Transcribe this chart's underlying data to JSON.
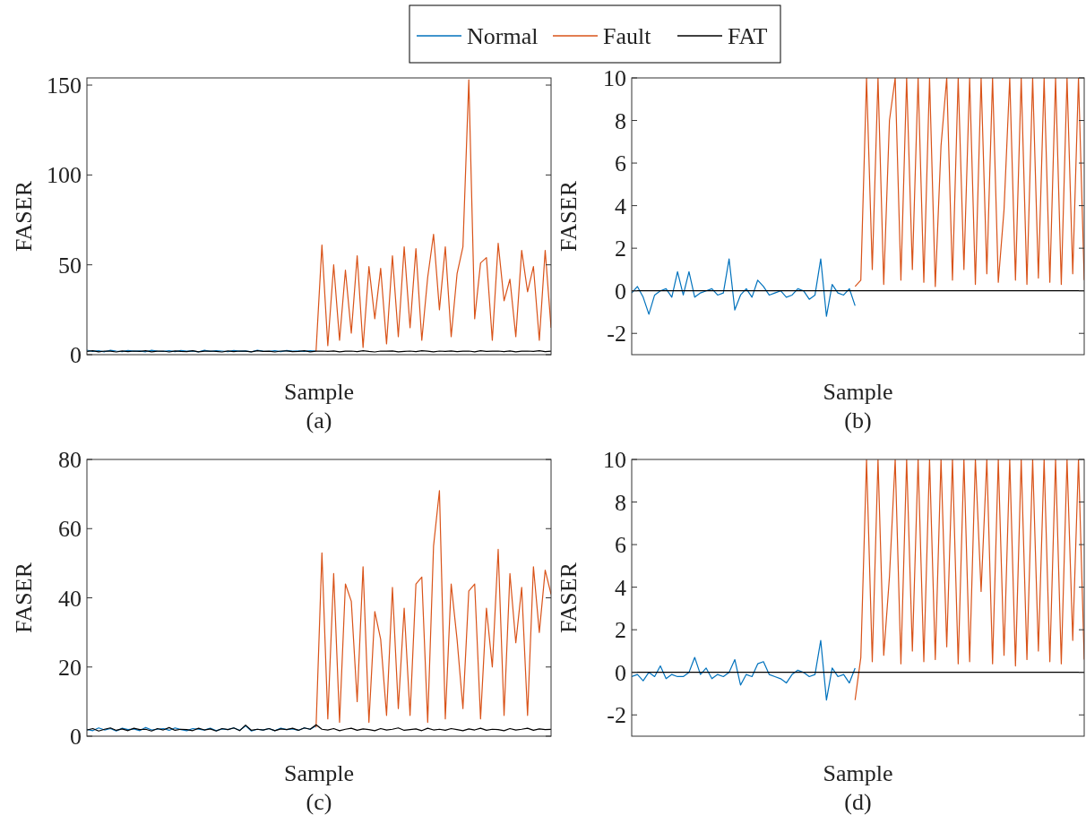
{
  "chart_data": [
    {
      "type": "line",
      "xlabel": "Sample",
      "ylabel": "FASER",
      "annotations": [
        "(a)"
      ],
      "legend": "top",
      "tick_labels": "y",
      "grid": false,
      "ylim": [
        0,
        154
      ],
      "yticks": [
        0,
        50,
        100,
        150
      ],
      "categories": [
        null,
        null,
        null,
        null,
        null,
        null,
        null,
        null,
        null,
        null,
        null,
        null,
        null,
        null,
        null,
        null,
        null,
        null,
        null,
        null,
        null,
        null,
        null,
        null,
        null,
        null,
        null,
        null,
        null,
        null,
        null,
        null,
        null,
        null,
        null,
        null,
        null,
        null,
        null,
        null,
        null,
        null,
        null,
        null,
        null,
        null,
        null,
        null,
        null,
        null,
        null,
        null,
        null,
        null,
        null,
        null,
        null,
        null,
        null,
        null,
        null,
        null,
        null,
        null,
        null,
        null,
        null,
        null,
        null,
        null,
        null,
        null,
        null,
        null,
        null,
        null,
        null,
        null,
        null,
        null
      ],
      "series": [
        {
          "name": "Normal",
          "color": "#0072bd",
          "values": [
            2.5,
            1.8,
            2.2,
            1.6,
            2.4,
            2,
            1.7,
            2.3,
            1.9,
            2.1,
            1.6,
            2.4,
            2,
            1.8,
            2.2,
            1.7,
            2.3,
            1.9,
            2.1,
            1.6,
            2.4,
            1.8,
            2.2,
            2,
            1.7,
            2.3,
            1.9,
            2.1,
            1.6,
            2.4,
            2,
            1.8,
            2.2,
            1.7,
            2.3,
            1.9,
            2.1,
            1.8,
            2.2,
            2,
            null,
            null,
            null,
            null,
            null,
            null,
            null,
            null,
            null,
            null,
            null,
            null,
            null,
            null,
            null,
            null,
            null,
            null,
            null,
            null,
            null,
            null,
            null,
            null,
            null,
            null,
            null,
            null,
            null,
            null,
            null,
            null,
            null,
            null,
            null,
            null,
            null,
            null,
            null,
            null
          ]
        },
        {
          "name": "Fault",
          "color": "#d95319",
          "values": [
            null,
            null,
            null,
            null,
            null,
            null,
            null,
            null,
            null,
            null,
            null,
            null,
            null,
            null,
            null,
            null,
            null,
            null,
            null,
            null,
            null,
            null,
            null,
            null,
            null,
            null,
            null,
            null,
            null,
            null,
            null,
            null,
            null,
            null,
            null,
            null,
            null,
            null,
            null,
            2,
            61,
            5,
            50,
            8,
            47,
            12,
            55,
            4,
            49,
            20,
            48,
            6,
            55,
            10,
            60,
            15,
            59,
            8,
            43,
            67,
            25,
            60,
            10,
            45,
            60,
            153,
            20,
            51,
            54,
            8,
            62,
            30,
            42,
            10,
            58,
            35,
            49,
            8,
            58,
            15
          ]
        },
        {
          "name": "FAT",
          "color": "#000000",
          "values": [
            1.8,
            2.2,
            1.6,
            2,
            1.9,
            1.5,
            2.1,
            1.7,
            2,
            1.8,
            2.2,
            1.6,
            1.9,
            2,
            1.5,
            2.1,
            1.8,
            1.7,
            2.2,
            1.6,
            1.9,
            2,
            1.8,
            1.5,
            2.1,
            1.7,
            2,
            1.9,
            1.6,
            2.2,
            1.8,
            1.9,
            1.5,
            2,
            2.1,
            1.7,
            1.8,
            2.2,
            1.6,
            1.9,
            2,
            1.8,
            2.1,
            1.6,
            1.9,
            2,
            1.7,
            2.2,
            1.8,
            1.5,
            2,
            1.9,
            2.1,
            1.6,
            1.8,
            2,
            1.7,
            2.2,
            1.9,
            1.6,
            2,
            1.8,
            2.1,
            1.7,
            1.9,
            2,
            1.6,
            2.2,
            1.8,
            1.9,
            2,
            1.7,
            2.1,
            1.6,
            1.9,
            2,
            1.8,
            2.2,
            1.7,
            1.9
          ]
        }
      ]
    },
    {
      "type": "line",
      "xlabel": "Sample",
      "ylabel": "FASER",
      "annotations": [
        "(b)"
      ],
      "tick_labels": "y",
      "grid": false,
      "ylim": [
        -3,
        10
      ],
      "yticks": [
        -2,
        0,
        2,
        4,
        6,
        8,
        10
      ],
      "categories": [
        null,
        null,
        null,
        null,
        null,
        null,
        null,
        null,
        null,
        null,
        null,
        null,
        null,
        null,
        null,
        null,
        null,
        null,
        null,
        null,
        null,
        null,
        null,
        null,
        null,
        null,
        null,
        null,
        null,
        null,
        null,
        null,
        null,
        null,
        null,
        null,
        null,
        null,
        null,
        null,
        null,
        null,
        null,
        null,
        null,
        null,
        null,
        null,
        null,
        null,
        null,
        null,
        null,
        null,
        null,
        null,
        null,
        null,
        null,
        null,
        null,
        null,
        null,
        null,
        null,
        null,
        null,
        null,
        null,
        null,
        null,
        null,
        null,
        null,
        null,
        null,
        null,
        null,
        null,
        null
      ],
      "series": [
        {
          "color": "#0072bd",
          "values": [
            -0.1,
            0.2,
            -0.3,
            -1.1,
            -0.2,
            0,
            0.1,
            -0.3,
            0.9,
            -0.2,
            0.9,
            -0.3,
            -0.1,
            0,
            0.1,
            -0.2,
            -0.1,
            1.5,
            -0.9,
            -0.2,
            0.1,
            -0.3,
            0.5,
            0.2,
            -0.2,
            -0.1,
            0,
            -0.3,
            -0.2,
            0.1,
            0,
            -0.4,
            -0.2,
            1.5,
            -1.2,
            0.3,
            -0.1,
            -0.2,
            0.1,
            -0.7,
            null,
            null,
            null,
            null,
            null,
            null,
            null,
            null,
            null,
            null,
            null,
            null,
            null,
            null,
            null,
            null,
            null,
            null,
            null,
            null,
            null,
            null,
            null,
            null,
            null,
            null,
            null,
            null,
            null,
            null,
            null,
            null,
            null,
            null,
            null,
            null,
            null,
            null,
            null,
            null
          ]
        },
        {
          "color": "#d95319",
          "values": [
            null,
            null,
            null,
            null,
            null,
            null,
            null,
            null,
            null,
            null,
            null,
            null,
            null,
            null,
            null,
            null,
            null,
            null,
            null,
            null,
            null,
            null,
            null,
            null,
            null,
            null,
            null,
            null,
            null,
            null,
            null,
            null,
            null,
            null,
            null,
            null,
            null,
            null,
            null,
            0.2,
            0.5,
            10,
            1,
            10,
            0.3,
            8,
            10,
            0.5,
            10,
            1,
            10,
            0.4,
            10,
            0.2,
            6.8,
            10,
            0.5,
            10,
            1,
            10,
            0.3,
            10,
            0.8,
            10,
            0.4,
            3.8,
            10,
            0.5,
            10,
            0.3,
            10,
            0.6,
            10,
            0.4,
            10,
            0.3,
            10,
            0.8,
            10,
            0.5
          ]
        },
        {
          "color": "#000000",
          "values": [
            0,
            0,
            0,
            0,
            0,
            0,
            0,
            0,
            0,
            0,
            0,
            0,
            0,
            0,
            0,
            0,
            0,
            0,
            0,
            0,
            0,
            0,
            0,
            0,
            0,
            0,
            0,
            0,
            0,
            0,
            0,
            0,
            0,
            0,
            0,
            0,
            0,
            0,
            0,
            0,
            0,
            0,
            0,
            0,
            0,
            0,
            0,
            0,
            0,
            0,
            0,
            0,
            0,
            0,
            0,
            0,
            0,
            0,
            0,
            0,
            0,
            0,
            0,
            0,
            0,
            0,
            0,
            0,
            0,
            0,
            0,
            0,
            0,
            0,
            0,
            0,
            0,
            0,
            0,
            0
          ]
        }
      ]
    },
    {
      "type": "line",
      "xlabel": "Sample",
      "ylabel": "FASER",
      "annotations": [
        "(c)"
      ],
      "tick_labels": "y",
      "grid": false,
      "ylim": [
        0,
        80
      ],
      "yticks": [
        0,
        20,
        40,
        60,
        80
      ],
      "categories": [
        null,
        null,
        null,
        null,
        null,
        null,
        null,
        null,
        null,
        null,
        null,
        null,
        null,
        null,
        null,
        null,
        null,
        null,
        null,
        null,
        null,
        null,
        null,
        null,
        null,
        null,
        null,
        null,
        null,
        null,
        null,
        null,
        null,
        null,
        null,
        null,
        null,
        null,
        null,
        null,
        null,
        null,
        null,
        null,
        null,
        null,
        null,
        null,
        null,
        null,
        null,
        null,
        null,
        null,
        null,
        null,
        null,
        null,
        null,
        null,
        null,
        null,
        null,
        null,
        null,
        null,
        null,
        null,
        null,
        null,
        null,
        null,
        null,
        null,
        null,
        null,
        null,
        null,
        null,
        null
      ],
      "series": [
        {
          "color": "#0072bd",
          "values": [
            2,
            1.6,
            2.4,
            1.8,
            2.2,
            1.5,
            2.3,
            1.9,
            2.1,
            1.6,
            2.5,
            1.8,
            2,
            2.2,
            1.7,
            2.4,
            1.9,
            1.6,
            2.2,
            2,
            1.8,
            2.3,
            1.6,
            2.1,
            1.9,
            2.4,
            1.7,
            3,
            1.5,
            2,
            1.8,
            2.2,
            1.6,
            2.3,
            1.9,
            2.1,
            1.7,
            2.4,
            2,
            3,
            null,
            null,
            null,
            null,
            null,
            null,
            null,
            null,
            null,
            null,
            null,
            null,
            null,
            null,
            null,
            null,
            null,
            null,
            null,
            null,
            null,
            null,
            null,
            null,
            null,
            null,
            null,
            null,
            null,
            null,
            null,
            null,
            null,
            null,
            null,
            null,
            null,
            null,
            null,
            null
          ]
        },
        {
          "color": "#d95319",
          "values": [
            null,
            null,
            null,
            null,
            null,
            null,
            null,
            null,
            null,
            null,
            null,
            null,
            null,
            null,
            null,
            null,
            null,
            null,
            null,
            null,
            null,
            null,
            null,
            null,
            null,
            null,
            null,
            null,
            null,
            null,
            null,
            null,
            null,
            null,
            null,
            null,
            null,
            null,
            null,
            2.5,
            53,
            5,
            47,
            4,
            44,
            39,
            10,
            49,
            4,
            36,
            28,
            6,
            43,
            8,
            37,
            6,
            44,
            46,
            4,
            55,
            71,
            5,
            44,
            28,
            8,
            42,
            44,
            5,
            37,
            20,
            54,
            6,
            47,
            27,
            43,
            6,
            49,
            30,
            48,
            41
          ]
        },
        {
          "color": "#000000",
          "values": [
            1.8,
            2.2,
            1.5,
            2,
            2.4,
            1.7,
            2.1,
            1.6,
            2.3,
            1.9,
            2,
            1.5,
            2.2,
            1.8,
            2.5,
            1.7,
            2,
            1.9,
            1.6,
            2.3,
            1.8,
            2.1,
            1.5,
            2.2,
            1.9,
            2.4,
            1.6,
            3.2,
            1.7,
            2,
            1.8,
            2.2,
            1.6,
            2.1,
            1.9,
            2.3,
            1.7,
            2.4,
            2,
            3.3,
            2,
            1.8,
            2.2,
            1.6,
            2,
            2.3,
            1.7,
            2.1,
            1.9,
            1.6,
            2.2,
            1.8,
            2,
            2.4,
            1.7,
            1.9,
            2.1,
            1.6,
            2.3,
            1.8,
            2,
            1.7,
            2.2,
            1.9,
            1.6,
            2.1,
            1.8,
            2.3,
            1.7,
            2,
            1.9,
            1.6,
            2.2,
            1.8,
            2,
            2.3,
            1.7,
            2.1,
            1.9,
            2
          ]
        }
      ]
    },
    {
      "type": "line",
      "xlabel": "Sample",
      "ylabel": "FASER",
      "annotations": [
        "(d)"
      ],
      "tick_labels": "y",
      "grid": false,
      "ylim": [
        -3,
        10
      ],
      "yticks": [
        -2,
        0,
        2,
        4,
        6,
        8,
        10
      ],
      "categories": [
        null,
        null,
        null,
        null,
        null,
        null,
        null,
        null,
        null,
        null,
        null,
        null,
        null,
        null,
        null,
        null,
        null,
        null,
        null,
        null,
        null,
        null,
        null,
        null,
        null,
        null,
        null,
        null,
        null,
        null,
        null,
        null,
        null,
        null,
        null,
        null,
        null,
        null,
        null,
        null,
        null,
        null,
        null,
        null,
        null,
        null,
        null,
        null,
        null,
        null,
        null,
        null,
        null,
        null,
        null,
        null,
        null,
        null,
        null,
        null,
        null,
        null,
        null,
        null,
        null,
        null,
        null,
        null,
        null,
        null,
        null,
        null,
        null,
        null,
        null,
        null,
        null,
        null,
        null,
        null
      ],
      "series": [
        {
          "color": "#0072bd",
          "values": [
            -0.2,
            -0.1,
            -0.4,
            0,
            -0.2,
            0.3,
            -0.3,
            -0.1,
            -0.2,
            -0.2,
            0,
            0.7,
            -0.1,
            0.2,
            -0.3,
            -0.1,
            -0.2,
            0,
            0.6,
            -0.6,
            -0.1,
            -0.2,
            0.4,
            0.5,
            -0.1,
            -0.2,
            -0.3,
            -0.5,
            -0.1,
            0.1,
            0,
            -0.2,
            -0.1,
            1.5,
            -1.3,
            0.2,
            -0.2,
            -0.1,
            -0.5,
            0.2,
            null,
            null,
            null,
            null,
            null,
            null,
            null,
            null,
            null,
            null,
            null,
            null,
            null,
            null,
            null,
            null,
            null,
            null,
            null,
            null,
            null,
            null,
            null,
            null,
            null,
            null,
            null,
            null,
            null,
            null,
            null,
            null,
            null,
            null,
            null,
            null,
            null,
            null,
            null,
            null
          ]
        },
        {
          "color": "#d95319",
          "values": [
            null,
            null,
            null,
            null,
            null,
            null,
            null,
            null,
            null,
            null,
            null,
            null,
            null,
            null,
            null,
            null,
            null,
            null,
            null,
            null,
            null,
            null,
            null,
            null,
            null,
            null,
            null,
            null,
            null,
            null,
            null,
            null,
            null,
            null,
            null,
            null,
            null,
            null,
            null,
            -1.3,
            0.7,
            10,
            0.5,
            10,
            0.8,
            4.5,
            10,
            0.4,
            10,
            1,
            10,
            0.5,
            10,
            0.6,
            10,
            1.2,
            10,
            0.4,
            10,
            0.5,
            10,
            3.8,
            10,
            0.4,
            10,
            0.8,
            10,
            0.3,
            10,
            0.6,
            10,
            1,
            10,
            0.5,
            10,
            0.4,
            10,
            1.5,
            10,
            0.6
          ]
        },
        {
          "color": "#000000",
          "values": [
            0,
            0,
            0,
            0,
            0,
            0,
            0,
            0,
            0,
            0,
            0,
            0,
            0,
            0,
            0,
            0,
            0,
            0,
            0,
            0,
            0,
            0,
            0,
            0,
            0,
            0,
            0,
            0,
            0,
            0,
            0,
            0,
            0,
            0,
            0,
            0,
            0,
            0,
            0,
            0,
            0,
            0,
            0,
            0,
            0,
            0,
            0,
            0,
            0,
            0,
            0,
            0,
            0,
            0,
            0,
            0,
            0,
            0,
            0,
            0,
            0,
            0,
            0,
            0,
            0,
            0,
            0,
            0,
            0,
            0,
            0,
            0,
            0,
            0,
            0,
            0,
            0,
            0,
            0,
            0
          ]
        }
      ]
    }
  ]
}
